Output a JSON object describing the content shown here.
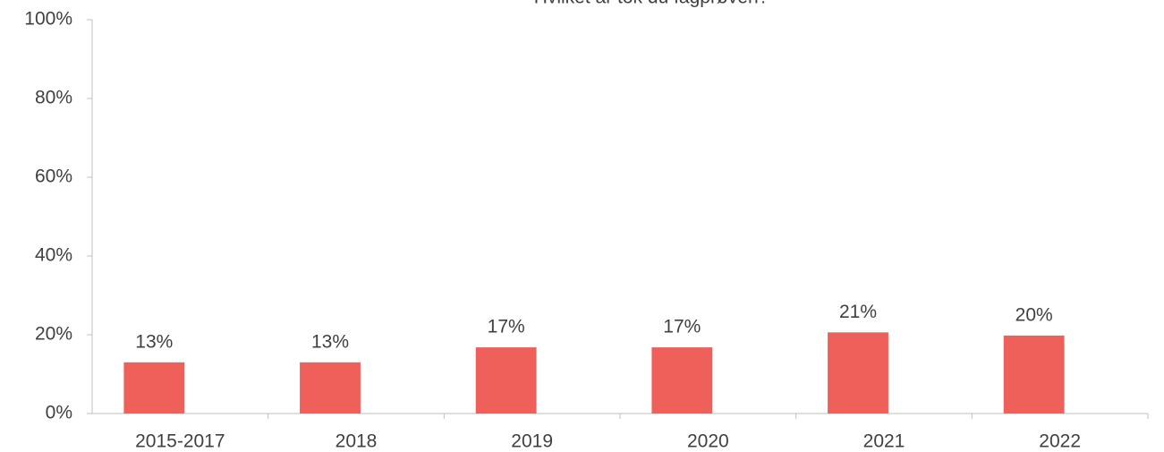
{
  "chart_data": {
    "type": "bar",
    "title": "Hvilket år tok du fagprøven?",
    "categories": [
      "2015-2017",
      "2018",
      "2019",
      "2020",
      "2021",
      "2022"
    ],
    "values": [
      13,
      13,
      16.8,
      16.8,
      20.6,
      19.8
    ],
    "value_labels": [
      "13%",
      "13%",
      "17%",
      "17%",
      "21%",
      "20%"
    ],
    "color": "#f0605b",
    "ylim": [
      0,
      100
    ],
    "yticks": [
      {
        "value": 0,
        "label": "0%"
      },
      {
        "value": 20,
        "label": "20%"
      },
      {
        "value": 40,
        "label": "40%"
      },
      {
        "value": 60,
        "label": "60%"
      },
      {
        "value": 80,
        "label": "80%"
      },
      {
        "value": 100,
        "label": "100%"
      }
    ],
    "grid": false
  }
}
